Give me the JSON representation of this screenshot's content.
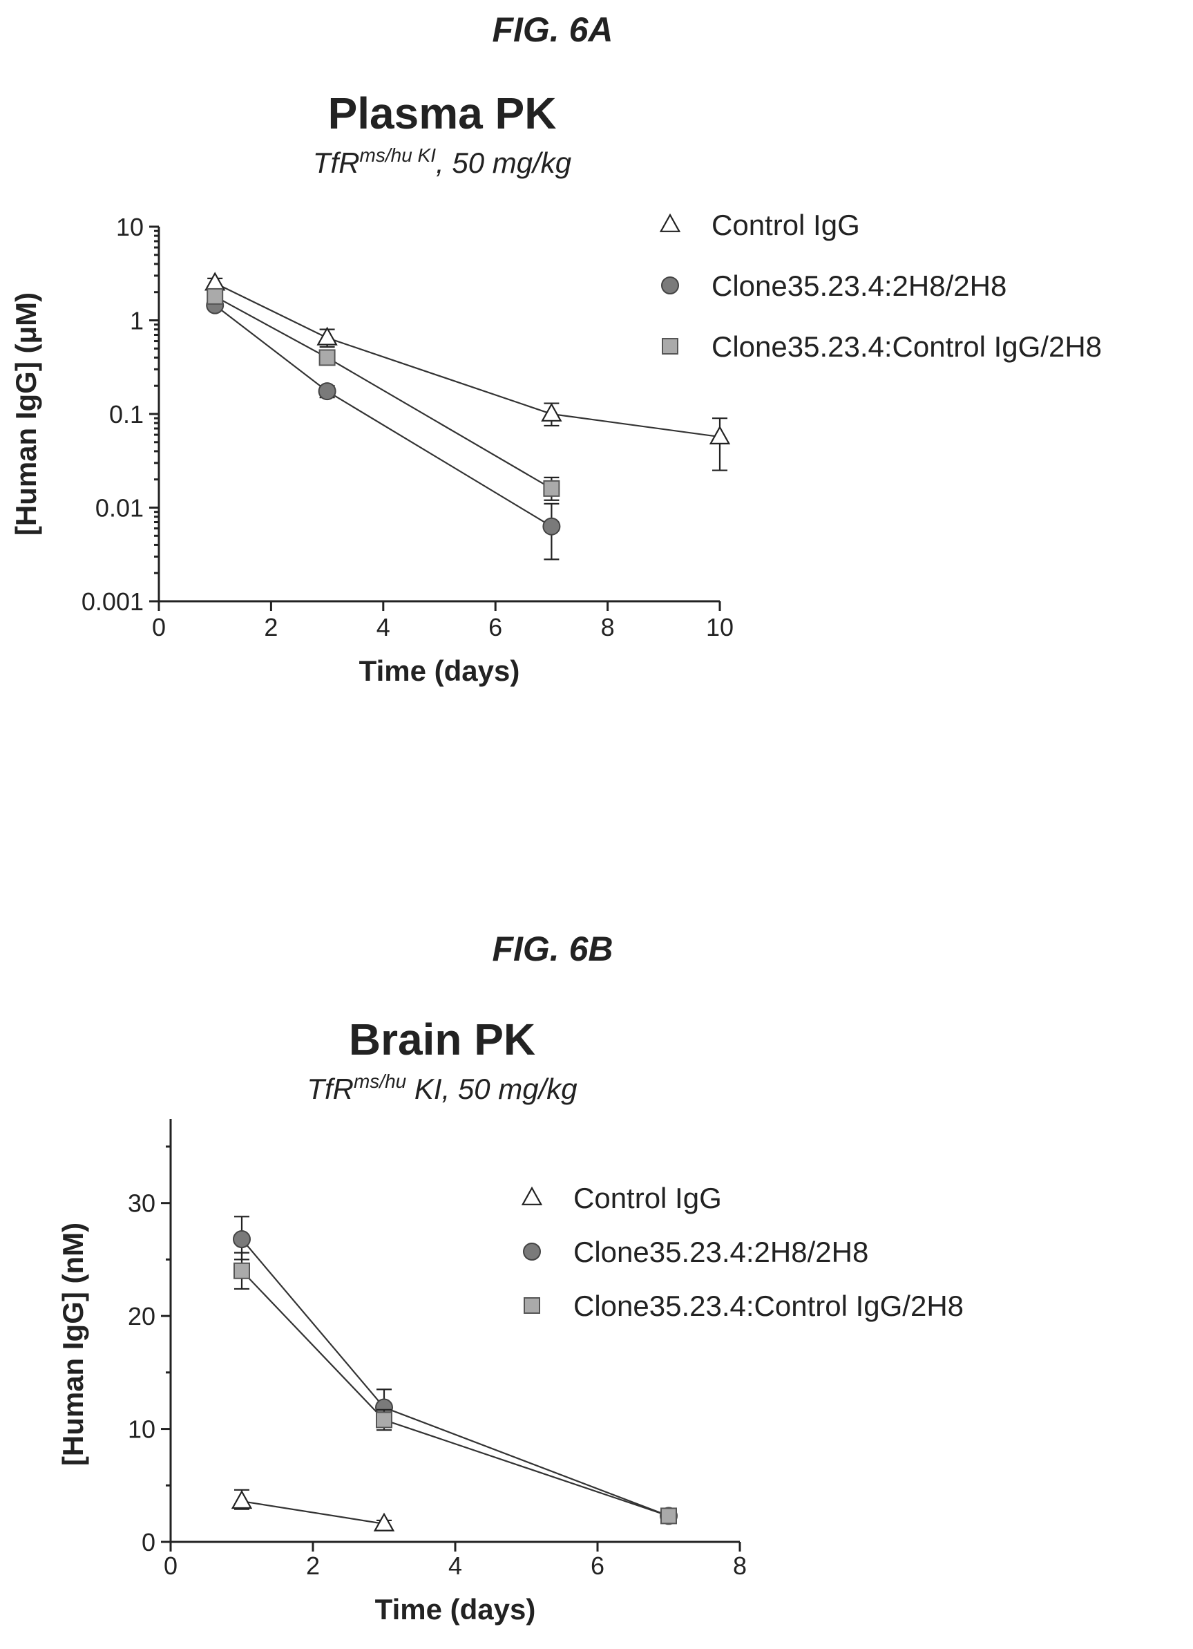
{
  "figures": [
    {
      "label": "FIG. 6A"
    },
    {
      "label": "FIG. 6B"
    }
  ],
  "chart_data": [
    {
      "type": "line",
      "title": "Plasma PK",
      "subtitle": {
        "pre": "TfR",
        "sup": "ms/hu KI",
        "post": ", 50 mg/kg"
      },
      "xlabel": "Time (days)",
      "ylabel": "[Human IgG] (μM)",
      "y_scale": "log",
      "xlim": [
        0,
        10
      ],
      "ylim": [
        0.001,
        10
      ],
      "x_ticks": [
        0,
        2,
        4,
        6,
        8,
        10
      ],
      "y_ticks": [
        0.001,
        0.01,
        0.1,
        1,
        10
      ],
      "y_tick_labels": [
        "0.001",
        "0.01",
        "0.1",
        "1",
        "10"
      ],
      "legend_position": "top-right",
      "grid": false,
      "series": [
        {
          "name": "Control IgG",
          "marker": "triangle",
          "color": "#ffffff",
          "x": [
            1,
            3,
            7,
            10
          ],
          "y": [
            2.5,
            0.65,
            0.1,
            0.057
          ],
          "err_low": [
            2.2,
            0.52,
            0.075,
            0.025
          ],
          "err_high": [
            2.8,
            0.8,
            0.13,
            0.09
          ]
        },
        {
          "name": "Clone35.23.4:2H8/2H8",
          "marker": "circle",
          "color": "#7a7a7a",
          "x": [
            1,
            3,
            7
          ],
          "y": [
            1.45,
            0.175,
            0.0063
          ],
          "err_low": [
            1.35,
            0.15,
            0.0028
          ],
          "err_high": [
            1.6,
            0.2,
            0.011
          ]
        },
        {
          "name": "Clone35.23.4:Control IgG/2H8",
          "marker": "square",
          "color": "#aaaaaa",
          "x": [
            1,
            3,
            7
          ],
          "y": [
            1.8,
            0.4,
            0.016
          ],
          "err_low": [
            1.65,
            0.35,
            0.012
          ],
          "err_high": [
            1.95,
            0.45,
            0.021
          ]
        }
      ]
    },
    {
      "type": "line",
      "title": "Brain PK",
      "subtitle": {
        "pre": "TfR",
        "sup": "ms/hu",
        "post": " KI, 50 mg/kg"
      },
      "xlabel": "Time (days)",
      "ylabel": "[Human IgG] (nM)",
      "y_scale": "linear",
      "xlim": [
        0,
        8
      ],
      "ylim": [
        0,
        35
      ],
      "x_ticks": [
        0,
        2,
        4,
        6,
        8
      ],
      "y_ticks": [
        0,
        10,
        20,
        30
      ],
      "y_tick_labels": [
        "0",
        "10",
        "20",
        "30"
      ],
      "legend_position": "top-right",
      "grid": false,
      "series": [
        {
          "name": "Control IgG",
          "marker": "triangle",
          "color": "#ffffff",
          "x": [
            1,
            3
          ],
          "y": [
            3.6,
            1.6
          ],
          "err_low": [
            2.9,
            1.3
          ],
          "err_high": [
            4.6,
            1.9
          ]
        },
        {
          "name": "Clone35.23.4:2H8/2H8",
          "marker": "circle",
          "color": "#7a7a7a",
          "x": [
            1,
            3,
            7
          ],
          "y": [
            26.8,
            11.9,
            2.3
          ],
          "err_low": [
            25.0,
            10.4,
            2.0
          ],
          "err_high": [
            28.8,
            13.5,
            2.6
          ]
        },
        {
          "name": "Clone35.23.4:Control IgG/2H8",
          "marker": "square",
          "color": "#aaaaaa",
          "x": [
            1,
            3,
            7
          ],
          "y": [
            24.0,
            10.8,
            2.3
          ],
          "err_low": [
            22.4,
            9.9,
            2.0
          ],
          "err_high": [
            25.6,
            11.7,
            2.6
          ]
        }
      ]
    }
  ]
}
